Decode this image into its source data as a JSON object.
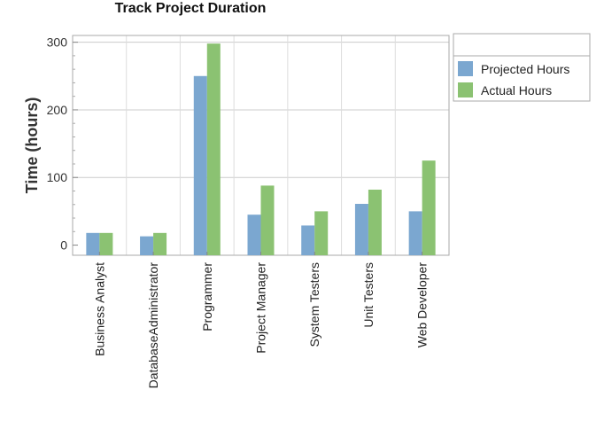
{
  "chart_data": {
    "type": "bar",
    "title": "Track Project Duration",
    "xlabel": "",
    "ylabel": "Time (hours)",
    "ylim": [
      -15,
      310
    ],
    "yticks": [
      0,
      100,
      200,
      300
    ],
    "grid": true,
    "legend_position": "top-right",
    "categories": [
      "Business Analyst",
      "DatabaseAdministrator",
      "Programmer",
      "Project Manager",
      "System Testers",
      "Unit Testers",
      "Web Developer"
    ],
    "series": [
      {
        "name": "Projected Hours",
        "color": "#7ba7d0",
        "values": [
          18,
          13,
          250,
          45,
          29,
          61,
          50
        ]
      },
      {
        "name": "Actual Hours",
        "color": "#8bc272",
        "values": [
          18,
          18,
          298,
          88,
          50,
          82,
          125
        ]
      }
    ]
  }
}
